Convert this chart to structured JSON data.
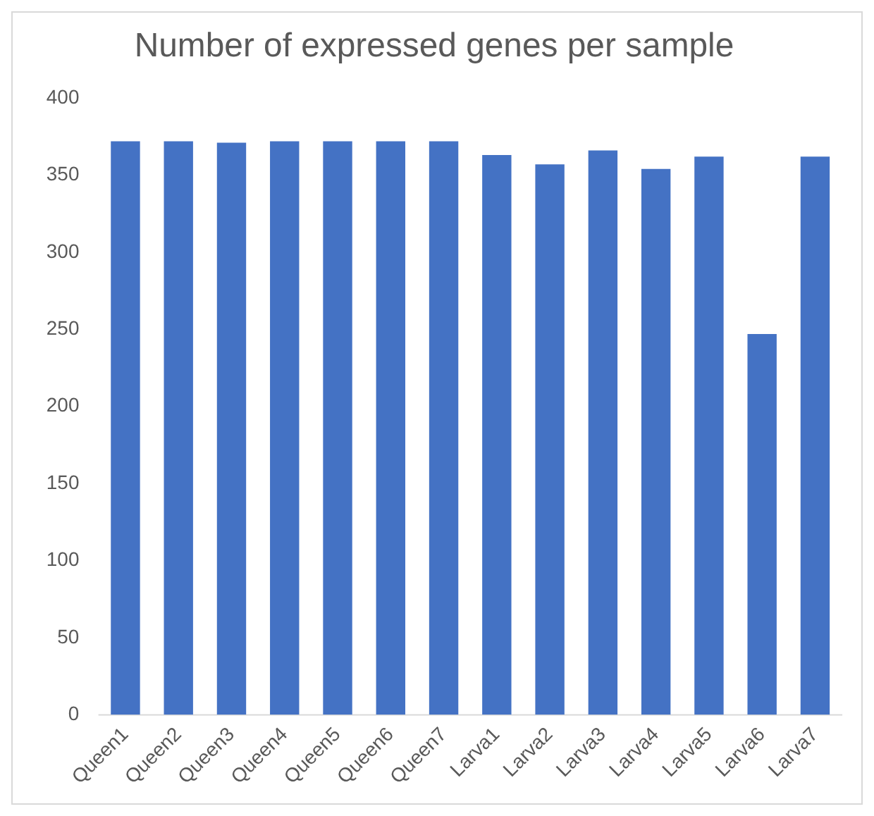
{
  "chart_data": {
    "type": "bar",
    "title": "Number of expressed genes per sample",
    "categories": [
      "Queen1",
      "Queen2",
      "Queen3",
      "Queen4",
      "Queen5",
      "Queen6",
      "Queen7",
      "Larva1",
      "Larva2",
      "Larva3",
      "Larva4",
      "Larva5",
      "Larva6",
      "Larva7"
    ],
    "values": [
      372,
      372,
      371,
      372,
      372,
      372,
      372,
      363,
      357,
      366,
      354,
      362,
      247,
      362
    ],
    "color": "#4472c4",
    "ylim": [
      0,
      400
    ],
    "yticks": [
      0,
      50,
      100,
      150,
      200,
      250,
      300,
      350,
      400
    ],
    "grid": false,
    "legend": false
  }
}
